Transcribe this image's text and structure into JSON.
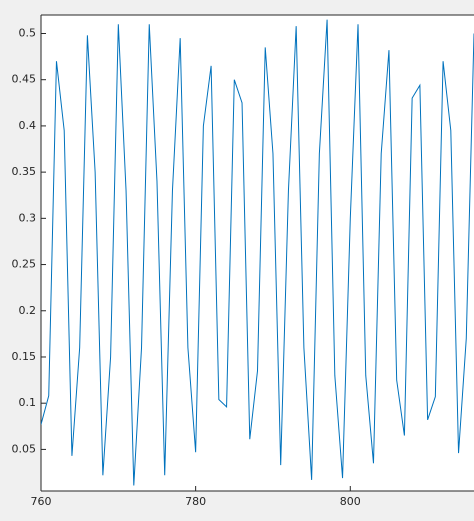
{
  "chart_data": {
    "type": "line",
    "x": [
      760,
      761,
      762,
      763,
      764,
      765,
      766,
      767,
      768,
      769,
      770,
      771,
      772,
      773,
      774,
      775,
      776,
      777,
      778,
      779,
      780,
      781,
      782,
      783,
      784,
      785,
      786,
      787,
      788,
      789,
      790,
      791,
      792,
      793,
      794,
      795,
      796,
      797,
      798,
      799,
      800,
      801,
      802,
      803,
      804,
      805,
      806,
      807,
      808,
      809,
      810,
      811,
      812,
      813,
      814,
      815,
      816
    ],
    "series": [
      {
        "color": "#0072bd",
        "values": [
          0.077,
          0.108,
          0.47,
          0.395,
          0.043,
          0.16,
          0.498,
          0.35,
          0.022,
          0.15,
          0.51,
          0.33,
          0.011,
          0.16,
          0.51,
          0.34,
          0.022,
          0.33,
          0.495,
          0.16,
          0.047,
          0.4,
          0.465,
          0.104,
          0.096,
          0.45,
          0.425,
          0.061,
          0.135,
          0.485,
          0.37,
          0.033,
          0.33,
          0.508,
          0.16,
          0.017,
          0.37,
          0.515,
          0.13,
          0.019,
          0.3,
          0.51,
          0.13,
          0.035,
          0.37,
          0.482,
          0.125,
          0.065,
          0.43,
          0.444,
          0.082,
          0.107,
          0.47,
          0.395,
          0.046,
          0.17,
          0.5
        ]
      }
    ],
    "xlim": [
      760,
      816
    ],
    "xticks": [
      760,
      780,
      800
    ],
    "ylim": [
      0.005,
      0.52
    ],
    "yticks": [
      0.05,
      0.1,
      0.15,
      0.2,
      0.25,
      0.3,
      0.35,
      0.4,
      0.45,
      0.5
    ],
    "grid": false
  }
}
